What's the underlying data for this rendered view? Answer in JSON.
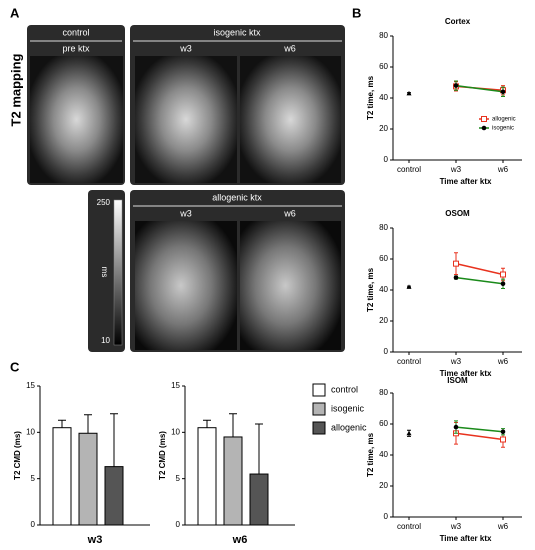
{
  "panel_labels": [
    "A",
    "B",
    "C"
  ],
  "panel_a": {
    "title": "T2 mapping",
    "control_header": "control",
    "control_sub": "pre ktx",
    "isogenic_header": "isogenic ktx",
    "isogenic_subs": [
      "w3",
      "w6"
    ],
    "allogenic_header": "allogenic ktx",
    "allogenic_subs": [
      "w3",
      "w6"
    ],
    "colorbar": {
      "max": 250,
      "min": 10,
      "unit": "ms"
    }
  },
  "chart_data": [
    {
      "type": "line",
      "title": "Cortex",
      "categories": [
        "control",
        "w3",
        "w6"
      ],
      "xlabel": "Time after ktx",
      "ylabel": "T2 time, ms",
      "ylim": [
        0,
        80
      ],
      "yticks": [
        0,
        20,
        40,
        60,
        80
      ],
      "legend": true,
      "series": [
        {
          "marker": "triangle",
          "color": "#000000",
          "values": [
            43,
            null,
            null
          ],
          "errors": [
            0.5,
            null,
            null
          ]
        },
        {
          "name": "allogenic",
          "marker": "square",
          "color": "#e8321e",
          "values": [
            null,
            47.5,
            45
          ],
          "errors": [
            null,
            3,
            3
          ]
        },
        {
          "name": "isogenic",
          "marker": "circle",
          "color": "#1a8a1a",
          "values": [
            null,
            48,
            44
          ],
          "errors": [
            null,
            3,
            3
          ]
        }
      ]
    },
    {
      "type": "line",
      "title": "OSOM",
      "categories": [
        "control",
        "w3",
        "w6"
      ],
      "xlabel": "Time after ktx",
      "ylabel": "T2 time, ms",
      "ylim": [
        0,
        80
      ],
      "yticks": [
        0,
        20,
        40,
        60,
        80
      ],
      "legend": false,
      "series": [
        {
          "marker": "triangle",
          "color": "#000000",
          "values": [
            42,
            null,
            null
          ],
          "errors": [
            0.5,
            null,
            null
          ]
        },
        {
          "name": "allogenic",
          "marker": "square",
          "color": "#e8321e",
          "values": [
            null,
            57,
            50
          ],
          "errors": [
            null,
            7,
            4
          ]
        },
        {
          "name": "isogenic",
          "marker": "circle",
          "color": "#1a8a1a",
          "values": [
            null,
            48,
            44
          ],
          "errors": [
            null,
            1,
            3
          ]
        }
      ]
    },
    {
      "type": "line",
      "title": "ISOM",
      "categories": [
        "control",
        "w3",
        "w6"
      ],
      "xlabel": "Time after ktx",
      "ylabel": "T2 time, ms",
      "ylim": [
        0,
        80
      ],
      "yticks": [
        0,
        20,
        40,
        60,
        80
      ],
      "legend": false,
      "series": [
        {
          "marker": "triangle",
          "color": "#000000",
          "values": [
            54,
            null,
            null
          ],
          "errors": [
            2,
            null,
            null
          ]
        },
        {
          "name": "allogenic",
          "marker": "square",
          "color": "#e8321e",
          "values": [
            null,
            54,
            50
          ],
          "errors": [
            null,
            7,
            5
          ]
        },
        {
          "name": "isogenic",
          "marker": "circle",
          "color": "#1a8a1a",
          "values": [
            null,
            58,
            55
          ],
          "errors": [
            null,
            4,
            2
          ]
        }
      ]
    },
    {
      "type": "bar",
      "title": "w3",
      "ylabel": "T2 CMD (ms)",
      "categories": [
        "control",
        "isogenic",
        "allogenic"
      ],
      "values": [
        10.5,
        9.9,
        6.3
      ],
      "errors": [
        0.8,
        2,
        5.7
      ],
      "colors": [
        "#ffffff",
        "#b4b4b4",
        "#555555"
      ],
      "ylim": [
        0,
        15
      ],
      "yticks": [
        0,
        5,
        10,
        15
      ],
      "legend": false
    },
    {
      "type": "bar",
      "title": "w6",
      "ylabel": "T2 CMD (ms)",
      "categories": [
        "control",
        "isogenic",
        "allogenic"
      ],
      "values": [
        10.5,
        9.5,
        5.5
      ],
      "errors": [
        0.8,
        2.5,
        5.4
      ],
      "colors": [
        "#ffffff",
        "#b4b4b4",
        "#555555"
      ],
      "ylim": [
        0,
        15
      ],
      "yticks": [
        0,
        5,
        10,
        15
      ],
      "legend": true
    }
  ]
}
